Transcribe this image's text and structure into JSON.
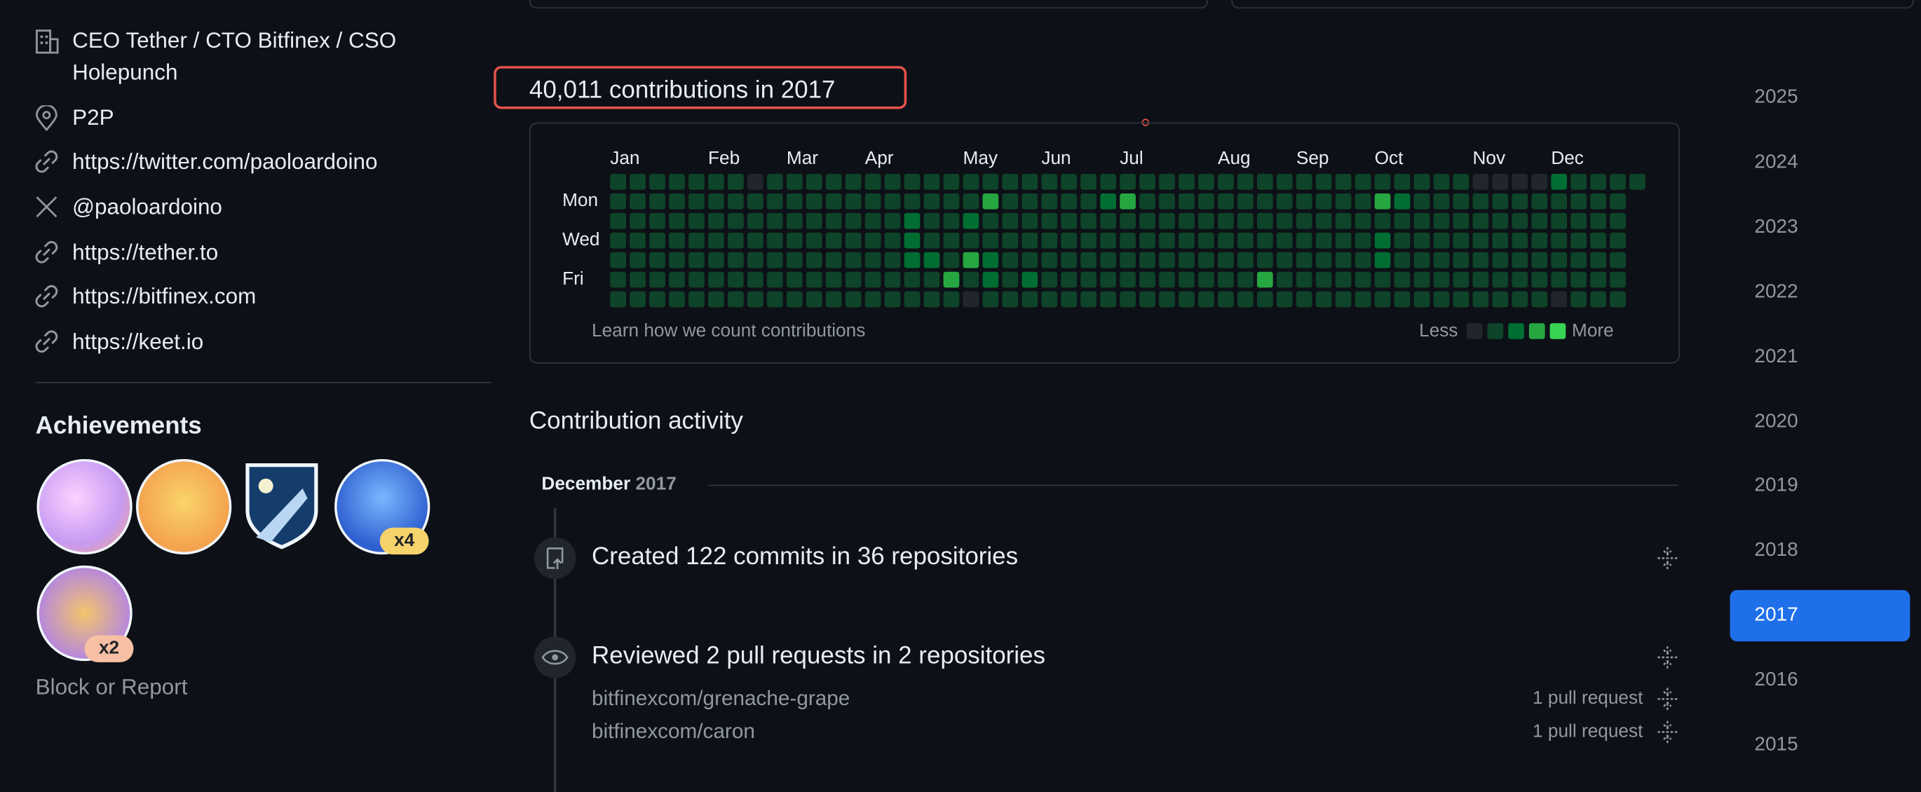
{
  "profile": [
    "CEO Tether / CTO Bitfinex / CSO Holepunch",
    "P2P",
    "https://twitter.com/paoloardoino",
    "@paoloardoino",
    "https://tether.to",
    "https://bitfinex.com",
    "https://keet.io"
  ],
  "achievements": {
    "title": "Achievements",
    "counts": [
      "x4",
      "x2"
    ]
  },
  "block_report": "Block or Report",
  "contributions": {
    "title": "40,011 contributions in 2017",
    "months": [
      "Jan",
      "Feb",
      "Mar",
      "Apr",
      "May",
      "Jun",
      "Jul",
      "Aug",
      "Sep",
      "Oct",
      "Nov",
      "Dec"
    ],
    "weekdays": [
      "Mon",
      "Wed",
      "Fri"
    ],
    "levels": [
      [
        1,
        1,
        1,
        1,
        1,
        1,
        1,
        0,
        1,
        1,
        1,
        1,
        1,
        1,
        1,
        1,
        1,
        1,
        1,
        1,
        1,
        1,
        1,
        1,
        1,
        1,
        1,
        1,
        1,
        1,
        1,
        1,
        1,
        1,
        1,
        1,
        1,
        1,
        1,
        1,
        1,
        1,
        1,
        1,
        0,
        0,
        0,
        0,
        2,
        1,
        1,
        1,
        1
      ],
      [
        1,
        1,
        1,
        1,
        1,
        1,
        1,
        1,
        1,
        1,
        1,
        1,
        1,
        1,
        1,
        1,
        1,
        1,
        1,
        3,
        1,
        1,
        1,
        1,
        1,
        2,
        3,
        1,
        1,
        1,
        1,
        1,
        1,
        1,
        1,
        1,
        1,
        1,
        1,
        3,
        2,
        1,
        1,
        1,
        1,
        1,
        1,
        1,
        1,
        1,
        1,
        1,
        null
      ],
      [
        1,
        1,
        1,
        1,
        1,
        1,
        1,
        1,
        1,
        1,
        1,
        1,
        1,
        1,
        1,
        2,
        1,
        1,
        2,
        1,
        1,
        1,
        1,
        1,
        1,
        1,
        1,
        1,
        1,
        1,
        1,
        1,
        1,
        1,
        1,
        1,
        1,
        1,
        1,
        1,
        1,
        1,
        1,
        1,
        1,
        1,
        1,
        1,
        1,
        1,
        1,
        1,
        null
      ],
      [
        1,
        1,
        1,
        1,
        1,
        1,
        1,
        1,
        1,
        1,
        1,
        1,
        1,
        1,
        1,
        2,
        1,
        1,
        1,
        1,
        1,
        1,
        1,
        1,
        1,
        1,
        1,
        1,
        1,
        1,
        1,
        1,
        1,
        1,
        1,
        1,
        1,
        1,
        1,
        2,
        1,
        1,
        1,
        1,
        1,
        1,
        1,
        1,
        1,
        1,
        1,
        1,
        null
      ],
      [
        1,
        1,
        1,
        1,
        1,
        1,
        1,
        1,
        1,
        1,
        1,
        1,
        1,
        1,
        1,
        2,
        2,
        1,
        3,
        2,
        1,
        1,
        1,
        1,
        1,
        1,
        1,
        1,
        1,
        1,
        1,
        1,
        1,
        1,
        1,
        1,
        1,
        1,
        1,
        2,
        1,
        1,
        1,
        1,
        1,
        1,
        1,
        1,
        1,
        1,
        1,
        1,
        null
      ],
      [
        1,
        1,
        1,
        1,
        1,
        1,
        1,
        1,
        1,
        1,
        1,
        1,
        1,
        1,
        1,
        1,
        1,
        3,
        1,
        2,
        1,
        2,
        1,
        1,
        1,
        1,
        1,
        1,
        1,
        1,
        1,
        1,
        1,
        3,
        1,
        1,
        1,
        1,
        1,
        1,
        1,
        1,
        1,
        1,
        1,
        1,
        1,
        1,
        1,
        1,
        1,
        1,
        null
      ],
      [
        1,
        1,
        1,
        1,
        1,
        1,
        1,
        1,
        1,
        1,
        1,
        1,
        1,
        1,
        1,
        1,
        1,
        1,
        0,
        1,
        1,
        1,
        1,
        1,
        1,
        1,
        1,
        1,
        1,
        1,
        1,
        1,
        1,
        1,
        1,
        1,
        1,
        1,
        1,
        1,
        1,
        1,
        1,
        1,
        1,
        1,
        1,
        1,
        0,
        1,
        1,
        1,
        null
      ]
    ],
    "footer": "Learn how we count contributions",
    "less": "Less",
    "more": "More"
  },
  "activity": {
    "title": "Contribution activity",
    "month": "December",
    "year": "2017",
    "items": [
      {
        "summary": "Created 122 commits in 36 repositories"
      },
      {
        "summary": "Reviewed 2 pull requests in 2 repositories",
        "repos": [
          {
            "name": "bitfinexcom/grenache-grape",
            "count": "1 pull request"
          },
          {
            "name": "bitfinexcom/caron",
            "count": "1 pull request"
          }
        ]
      }
    ]
  },
  "years": [
    "2025",
    "2024",
    "2023",
    "2022",
    "2021",
    "2020",
    "2019",
    "2018",
    "2017",
    "2016",
    "2015"
  ],
  "selected_year_index": 8
}
